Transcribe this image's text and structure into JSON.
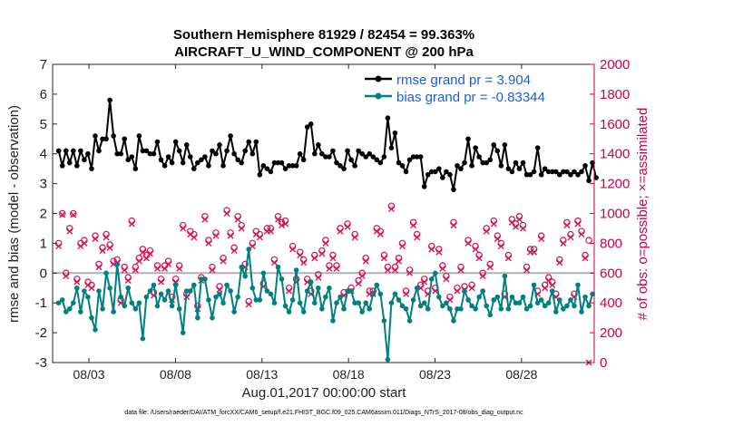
{
  "chart_data": {
    "type": "line",
    "title_line1": "Southern Hemisphere 81929 / 82454 = 99.363%",
    "title_line2": "AIRCRAFT_U_WIND_COMPONENT @ 200 hPa",
    "ylabel": "rmse and bias (model - observation)",
    "y2label": "# of obs: o=possible; ×=assimilated",
    "xlabel": "Aug.01,2017 00:00:00 start",
    "footer": "data file: /Users/raeder/DAI/ATM_forcXX/CAM6_setup/f.e21.FHIST_BGC.f09_025.CAM6assim.011/Diags_NTrS_2017-08/obs_diag_output.nc",
    "xlim": [
      0.9,
      32.2
    ],
    "ylim": [
      -3,
      7
    ],
    "y2lim": [
      0,
      2000
    ],
    "xticks": [
      {
        "x": 3,
        "label": "08/03"
      },
      {
        "x": 8,
        "label": "08/08"
      },
      {
        "x": 13,
        "label": "08/13"
      },
      {
        "x": 18,
        "label": "08/18"
      },
      {
        "x": 23,
        "label": "08/23"
      },
      {
        "x": 28,
        "label": "08/28"
      }
    ],
    "yticks": [
      "-3",
      "-2",
      "-1",
      "0",
      "1",
      "2",
      "3",
      "4",
      "5",
      "6",
      "7"
    ],
    "y2ticks": [
      "0",
      "200",
      "400",
      "600",
      "800",
      "1000",
      "1200",
      "1400",
      "1600",
      "1800",
      "2000"
    ],
    "zero_line": 0,
    "series": [
      {
        "name": "rmse",
        "legend": "rmse grand pr = 3.904",
        "color": "#000000",
        "values": [
          4.1,
          3.6,
          4.1,
          3.7,
          4.1,
          3.6,
          4.1,
          3.8,
          4.0,
          3.5,
          4.6,
          4.1,
          4.5,
          4.5,
          5.8,
          4.6,
          4.0,
          4.0,
          4.5,
          3.8,
          3.9,
          3.5,
          4.6,
          4.1,
          4.1,
          4.0,
          4.0,
          4.4,
          3.8,
          3.6,
          3.9,
          3.7,
          4.4,
          4.1,
          3.7,
          4.3,
          3.9,
          3.5,
          3.7,
          3.8,
          3.9,
          3.6,
          4.1,
          4.0,
          4.3,
          3.6,
          4.1,
          4.6,
          4.0,
          3.8,
          3.7,
          4.1,
          4.4,
          4.0,
          4.4,
          3.3,
          3.6,
          3.5,
          3.4,
          3.7,
          3.7,
          3.7,
          3.5,
          3.6,
          3.6,
          3.6,
          4.0,
          3.8,
          4.9,
          5.0,
          4.0,
          4.3,
          4.0,
          3.9,
          3.9,
          4.1,
          3.7,
          3.6,
          3.5,
          4.1,
          3.8,
          3.6,
          4.1,
          4.0,
          3.9,
          4.0,
          3.9,
          3.8,
          3.7,
          3.9,
          5.2,
          4.2,
          4.7,
          3.7,
          3.6,
          3.4,
          3.8,
          3.9,
          3.9,
          3.9,
          2.9,
          3.3,
          3.4,
          3.4,
          3.5,
          3.2,
          3.4,
          3.3,
          2.8,
          3.6,
          3.5,
          3.7,
          4.5,
          3.6,
          4.2,
          3.9,
          3.7,
          3.7,
          3.8,
          4.3,
          4.1,
          3.6,
          4.3,
          3.5,
          3.4,
          3.7,
          3.5,
          3.7,
          3.3,
          3.3,
          3.4,
          4.2,
          3.3,
          3.5,
          3.4,
          3.4,
          3.4,
          3.3,
          3.4,
          3.4,
          3.3,
          3.4,
          3.3,
          3.4,
          3.6,
          3.1,
          3.7,
          3.2
        ]
      },
      {
        "name": "bias",
        "legend": "bias grand pr = -0.83344",
        "color": "#008080",
        "values": [
          -1.0,
          -0.9,
          -1.3,
          -1.2,
          -1.0,
          -0.5,
          -1.3,
          -0.6,
          -0.8,
          -1.5,
          -1.9,
          -0.6,
          -1.2,
          0.0,
          -0.5,
          -1.3,
          0.3,
          -0.8,
          -1.1,
          -0.5,
          -1.0,
          -1.2,
          -1.0,
          -2.2,
          -0.8,
          -0.6,
          -0.4,
          -1.1,
          -0.7,
          -0.9,
          -0.6,
          -1.1,
          -0.4,
          -1.2,
          -2.0,
          -0.6,
          -0.6,
          -0.4,
          -1.5,
          -0.2,
          -0.2,
          -0.9,
          -1.5,
          -0.8,
          -0.7,
          -1.0,
          -0.4,
          -0.6,
          -1.3,
          -0.8,
          0.2,
          -0.1,
          0.8,
          -0.5,
          -0.9,
          -0.9,
          0.0,
          -0.6,
          -0.7,
          -1.0,
          0.2,
          -0.2,
          -1.1,
          -1.3,
          -0.9,
          0.1,
          -1.0,
          -1.3,
          -0.6,
          -0.3,
          -1.0,
          -0.5,
          -1.2,
          -0.8,
          -0.5,
          -1.6,
          -1.0,
          -0.8,
          -1.2,
          -0.6,
          -0.6,
          -1.0,
          -1.0,
          -1.3,
          -1.0,
          -1.2,
          -0.7,
          -0.4,
          -0.7,
          -1.6,
          -2.9,
          -1.0,
          -0.7,
          -0.9,
          -1.1,
          -1.2,
          -1.6,
          -0.9,
          -0.5,
          -1.1,
          -1.0,
          -1.2,
          -0.2,
          0.0,
          -0.8,
          -1.1,
          -1.0,
          -1.2,
          -1.6,
          -1.2,
          -1.2,
          -0.6,
          -0.9,
          -1.1,
          -1.2,
          -0.8,
          -0.6,
          -1.1,
          -1.4,
          -0.9,
          -0.8,
          -1.2,
          -0.1,
          -1.2,
          -0.8,
          -1.0,
          -1.0,
          -0.8,
          -1.2,
          -1.1,
          -0.4,
          -1.0,
          -0.9,
          -1.1,
          -1.0,
          -0.6,
          -1.3,
          -0.9,
          -1.2,
          -1.1,
          -0.9,
          -1.1,
          -0.4,
          -1.3,
          -0.8,
          -1.1,
          -0.7
        ]
      }
    ],
    "obs_possible": [
      800,
      1000,
      600,
      900,
      1000,
      560,
      800,
      820,
      540,
      520,
      850,
      660,
      770,
      860,
      790,
      680,
      690,
      420,
      640,
      570,
      950,
      640,
      700,
      760,
      720,
      750,
      470,
      650,
      560,
      650,
      680,
      440,
      560,
      650,
      920,
      460,
      880,
      860,
      380,
      570,
      980,
      820,
      640,
      870,
      510,
      700,
      1020,
      870,
      770,
      980,
      920,
      660,
      410,
      800,
      880,
      860,
      530,
      900,
      900,
      690,
      980,
      940,
      950,
      500,
      780,
      560,
      740,
      690,
      560,
      480,
      720,
      590,
      750,
      820,
      650,
      720,
      650,
      900,
      470,
      930,
      500,
      860,
      550,
      600,
      700,
      480,
      480,
      900,
      880,
      720,
      640,
      1050,
      640,
      700,
      800,
      480,
      620,
      940,
      860,
      520,
      560,
      480,
      780,
      500,
      760,
      650,
      580,
      440,
      940,
      500,
      640,
      510,
      820,
      520,
      780,
      720,
      600,
      900,
      660,
      950,
      850,
      800,
      460,
      720,
      960,
      930,
      980,
      920,
      640,
      760,
      760,
      480,
      850,
      520,
      570,
      540,
      460,
      690,
      820,
      940,
      860,
      460,
      950,
      880,
      720,
      820
    ],
    "obs_assimilated": [
      780,
      990,
      580,
      880,
      990,
      540,
      780,
      800,
      520,
      500,
      830,
      640,
      750,
      840,
      770,
      660,
      670,
      400,
      620,
      550,
      930,
      620,
      680,
      740,
      700,
      730,
      450,
      630,
      540,
      630,
      660,
      420,
      540,
      630,
      900,
      440,
      860,
      840,
      360,
      550,
      960,
      800,
      620,
      850,
      490,
      680,
      1000,
      850,
      750,
      960,
      900,
      640,
      390,
      780,
      860,
      840,
      510,
      880,
      880,
      670,
      960,
      920,
      930,
      480,
      760,
      540,
      720,
      670,
      540,
      460,
      700,
      570,
      730,
      800,
      630,
      700,
      630,
      880,
      450,
      910,
      480,
      840,
      530,
      580,
      680,
      460,
      460,
      880,
      860,
      700,
      620,
      1030,
      620,
      680,
      780,
      460,
      600,
      920,
      840,
      500,
      540,
      460,
      760,
      480,
      740,
      630,
      560,
      420,
      920,
      480,
      620,
      490,
      800,
      500,
      760,
      700,
      580,
      880,
      640,
      930,
      830,
      780,
      440,
      700,
      940,
      910,
      960,
      900,
      620,
      740,
      740,
      460,
      830,
      500,
      550,
      520,
      440,
      670,
      800,
      920,
      840,
      440,
      930,
      860,
      700,
      0
    ]
  }
}
